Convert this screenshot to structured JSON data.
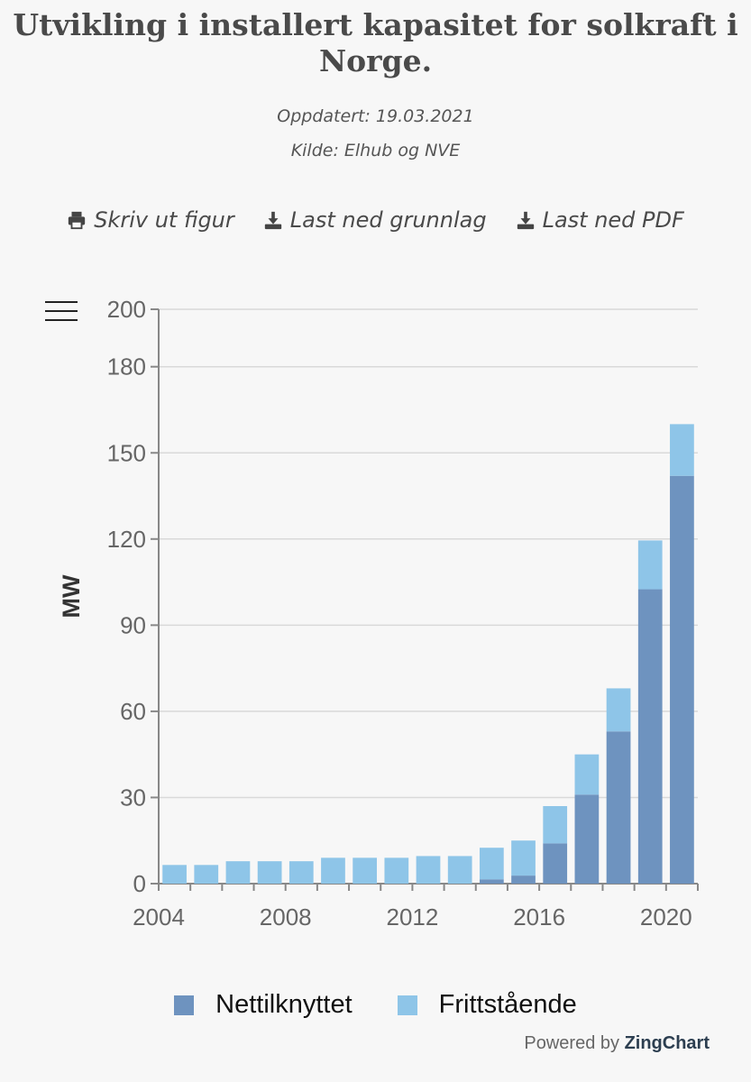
{
  "header": {
    "title": "Utvikling i installert kapasitet for solkraft i Norge.",
    "updated": "Oppdatert: 19.03.2021",
    "source": "Kilde: Elhub og NVE"
  },
  "actions": {
    "print_label": "Skriv ut figur",
    "download_data_label": "Last ned grunnlag",
    "download_pdf_label": "Last ned PDF"
  },
  "footer": {
    "powered_prefix": "Powered by",
    "powered_brand": "ZingChart"
  },
  "colors": {
    "nettilknyttet": "#6e93bf",
    "frittstaende": "#8ec5e8",
    "grid": "#d9d9d9",
    "axis": "#888888"
  },
  "chart_data": {
    "type": "bar",
    "stacked": true,
    "title": "",
    "xlabel": "",
    "ylabel": "MW",
    "ylim": [
      0,
      200
    ],
    "yticks": [
      0,
      30,
      60,
      90,
      120,
      150,
      180,
      200
    ],
    "xticks": [
      "2004",
      "2008",
      "2012",
      "2016",
      "2020"
    ],
    "categories": [
      "2004",
      "2005",
      "2006",
      "2007",
      "2008",
      "2009",
      "2010",
      "2011",
      "2012",
      "2013",
      "2014",
      "2015",
      "2016",
      "2017",
      "2018",
      "2019",
      "2020"
    ],
    "series": [
      {
        "name": "Nettilknyttet",
        "values": [
          0,
          0,
          0,
          0,
          0,
          0,
          0,
          0,
          0,
          0,
          1.5,
          2.8,
          14,
          31,
          53,
          102.5,
          142
        ]
      },
      {
        "name": "Frittstående",
        "values": [
          6.5,
          6.5,
          7.8,
          7.8,
          7.8,
          9,
          9,
          9,
          9.6,
          9.6,
          11,
          12.2,
          13,
          14,
          15,
          17,
          18
        ]
      }
    ],
    "legend": "bottom",
    "grid": true
  }
}
